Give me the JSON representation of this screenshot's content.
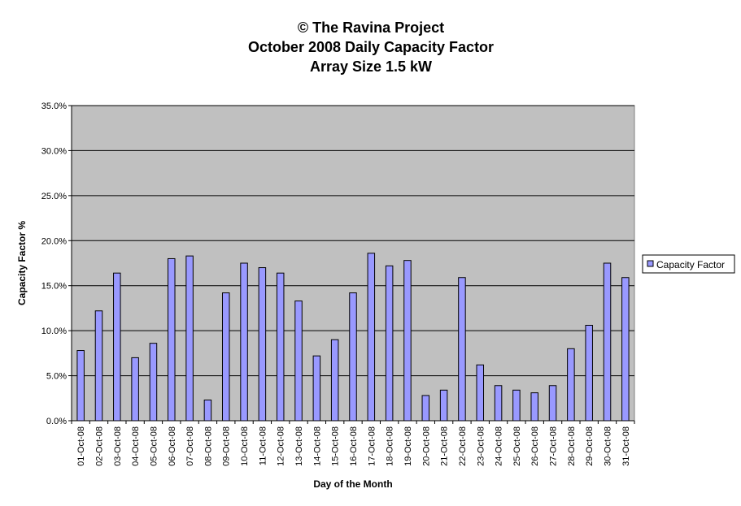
{
  "chart_data": {
    "type": "bar",
    "title_lines": [
      "© The Ravina Project",
      "October 2008 Daily Capacity Factor",
      "Array Size 1.5 kW"
    ],
    "xlabel": "Day of the Month",
    "ylabel": "Capacity Factor %",
    "ylim": [
      0,
      35
    ],
    "ytick_step": 5,
    "ytick_labels": [
      "0.0%",
      "5.0%",
      "10.0%",
      "15.0%",
      "20.0%",
      "25.0%",
      "30.0%",
      "35.0%"
    ],
    "grid": true,
    "legend_position": "right",
    "categories": [
      "01-Oct-08",
      "02-Oct-08",
      "03-Oct-08",
      "04-Oct-08",
      "05-Oct-08",
      "06-Oct-08",
      "07-Oct-08",
      "08-Oct-08",
      "09-Oct-08",
      "10-Oct-08",
      "11-Oct-08",
      "12-Oct-08",
      "13-Oct-08",
      "14-Oct-08",
      "15-Oct-08",
      "16-Oct-08",
      "17-Oct-08",
      "18-Oct-08",
      "19-Oct-08",
      "20-Oct-08",
      "21-Oct-08",
      "22-Oct-08",
      "23-Oct-08",
      "24-Oct-08",
      "25-Oct-08",
      "26-Oct-08",
      "27-Oct-08",
      "28-Oct-08",
      "29-Oct-08",
      "30-Oct-08",
      "31-Oct-08"
    ],
    "series": [
      {
        "name": "Capacity Factor",
        "color": "#9999ff",
        "values": [
          7.8,
          12.2,
          16.4,
          7.0,
          8.6,
          18.0,
          18.3,
          2.3,
          14.2,
          17.5,
          17.0,
          16.4,
          13.3,
          7.2,
          9.0,
          14.2,
          18.6,
          17.2,
          17.8,
          2.8,
          3.4,
          15.9,
          6.2,
          3.9,
          3.4,
          3.1,
          3.9,
          8.0,
          10.6,
          17.5,
          15.9
        ]
      }
    ],
    "plot_bg": "#c0c0c0"
  }
}
